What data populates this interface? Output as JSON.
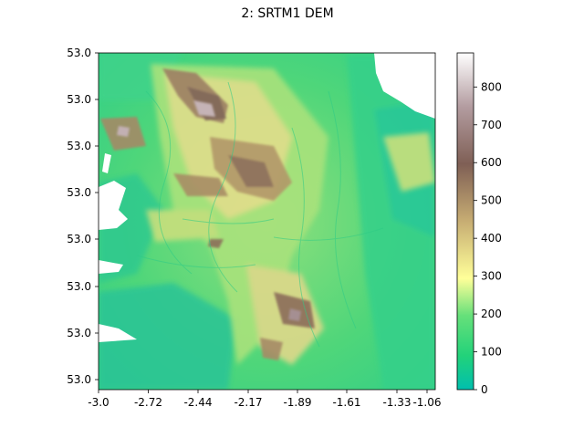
{
  "figure": {
    "title": "2: SRTM1 DEM"
  },
  "map": {
    "type": "raster-dem",
    "colormap": "terrain",
    "x_ticks": [
      "-3.0",
      "-2.72",
      "-2.44",
      "-2.17",
      "-1.89",
      "-1.61",
      "-1.33",
      "-1.06"
    ],
    "y_ticks": [
      "53.0",
      "53.0",
      "53.0",
      "53.0",
      "53.0",
      "53.0",
      "53.0",
      "53.0"
    ],
    "colorbar": {
      "ticks": [
        "0",
        "100",
        "200",
        "300",
        "400",
        "500",
        "600",
        "700",
        "800"
      ],
      "min": 0,
      "max": 890
    },
    "colors": {
      "lowland": "#1fbf9a",
      "green": "#33d67a",
      "light_green": "#9fe07a",
      "yellow": "#e9e08a",
      "tan": "#b49a6b",
      "brown": "#7a5e55",
      "peak": "#f5f1f4",
      "sea": "#ffffff"
    }
  }
}
